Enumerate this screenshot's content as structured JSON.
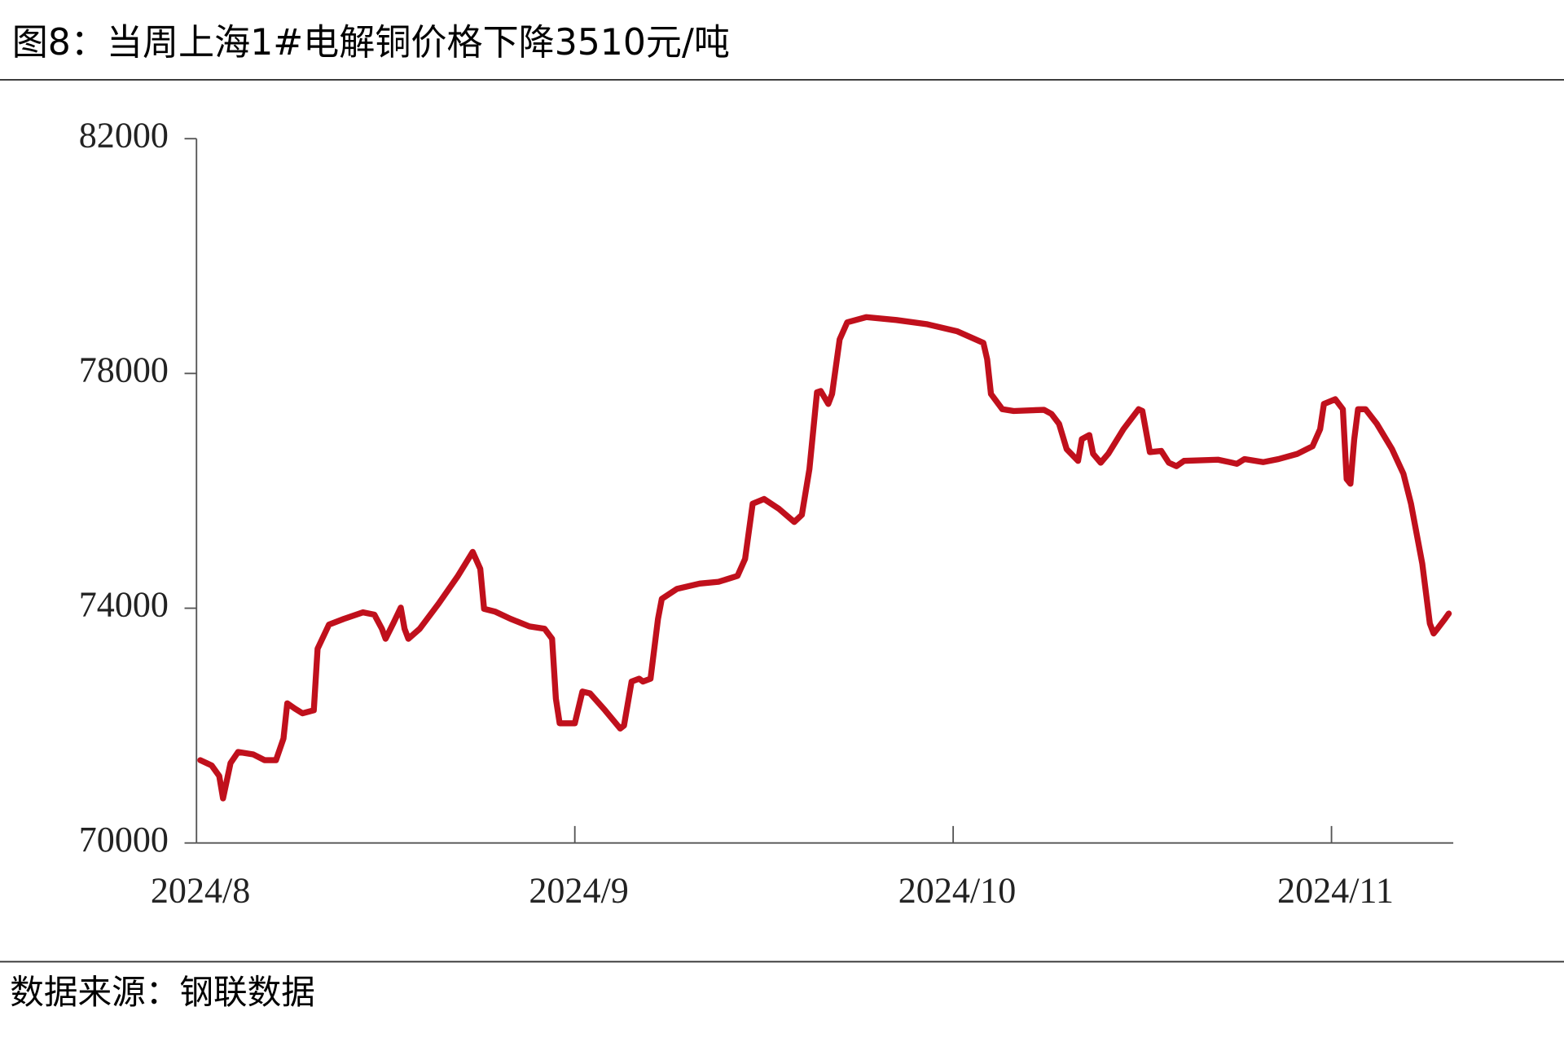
{
  "chart_data": {
    "type": "line",
    "title": "图8：当周上海1#电解铜价格下降3510元/吨",
    "source": "数据来源：钢联数据",
    "x": [
      8.01,
      8.04,
      8.06,
      8.07,
      8.09,
      8.11,
      8.15,
      8.18,
      8.21,
      8.23,
      8.24,
      8.26,
      8.28,
      8.31,
      8.32,
      8.35,
      8.39,
      8.44,
      8.47,
      8.49,
      8.5,
      8.52,
      8.54,
      8.55,
      8.56,
      8.59,
      8.64,
      8.69,
      8.73,
      8.75,
      8.76,
      8.79,
      8.83,
      8.88,
      8.92,
      8.94,
      8.95,
      8.96,
      9.0,
      9.02,
      9.04,
      9.08,
      9.12,
      9.13,
      9.15,
      9.17,
      9.18,
      9.2,
      9.22,
      9.23,
      9.27,
      9.33,
      9.38,
      9.43,
      9.45,
      9.47,
      9.5,
      9.54,
      9.58,
      9.6,
      9.62,
      9.64,
      9.65,
      9.67,
      9.68,
      9.7,
      9.72,
      9.77,
      9.85,
      9.93,
      10.01,
      10.08,
      10.09,
      10.1,
      10.13,
      10.16,
      10.24,
      10.26,
      10.28,
      10.3,
      10.33,
      10.34,
      10.36,
      10.37,
      10.39,
      10.41,
      10.45,
      10.49,
      10.5,
      10.52,
      10.55,
      10.57,
      10.59,
      10.61,
      10.7,
      10.73,
      10.75,
      10.77,
      10.82,
      10.86,
      10.91,
      10.95,
      10.97,
      10.98,
      11.01,
      11.03,
      11.04,
      11.05,
      11.06,
      11.07,
      11.09,
      11.12,
      11.16,
      11.19,
      11.21,
      11.24,
      11.26,
      11.27,
      11.28,
      11.3,
      11.31
    ],
    "series": [
      {
        "name": "上海1#电解铜价格",
        "color": "#c0101c",
        "values": [
          71410,
          71320,
          71140,
          70760,
          71360,
          71550,
          71510,
          71410,
          71410,
          71780,
          72380,
          72290,
          72210,
          72260,
          73310,
          73720,
          73820,
          73930,
          73890,
          73650,
          73480,
          73740,
          74010,
          73650,
          73480,
          73650,
          74080,
          74540,
          74960,
          74670,
          73990,
          73940,
          73820,
          73690,
          73650,
          73480,
          72460,
          72040,
          72040,
          72580,
          72550,
          72260,
          71950,
          72000,
          72750,
          72800,
          72750,
          72800,
          73820,
          74160,
          74330,
          74420,
          74450,
          74550,
          74840,
          75780,
          75860,
          75690,
          75470,
          75590,
          76370,
          77680,
          77700,
          77480,
          77650,
          78580,
          78870,
          78960,
          78910,
          78840,
          78720,
          78520,
          78240,
          77650,
          77390,
          77360,
          77380,
          77310,
          77140,
          76710,
          76510,
          76880,
          76950,
          76630,
          76480,
          76630,
          77050,
          77390,
          77360,
          76660,
          76680,
          76480,
          76420,
          76510,
          76530,
          76490,
          76460,
          76540,
          76490,
          76540,
          76630,
          76760,
          77050,
          77480,
          77560,
          77390,
          76200,
          76120,
          76880,
          77390,
          77390,
          77140,
          76710,
          76290,
          75780,
          74760,
          73740,
          73570,
          73650,
          73820,
          73910
        ]
      }
    ],
    "xlim": [
      8,
      11.32
    ],
    "xticks": [
      {
        "value": 8,
        "label": "2024/8"
      },
      {
        "value": 9,
        "label": "2024/9"
      },
      {
        "value": 10,
        "label": "2024/10"
      },
      {
        "value": 11,
        "label": "2024/11"
      }
    ],
    "ylim": [
      70000,
      82000
    ],
    "yticks": [
      70000,
      74000,
      78000,
      82000
    ],
    "grid": false
  }
}
